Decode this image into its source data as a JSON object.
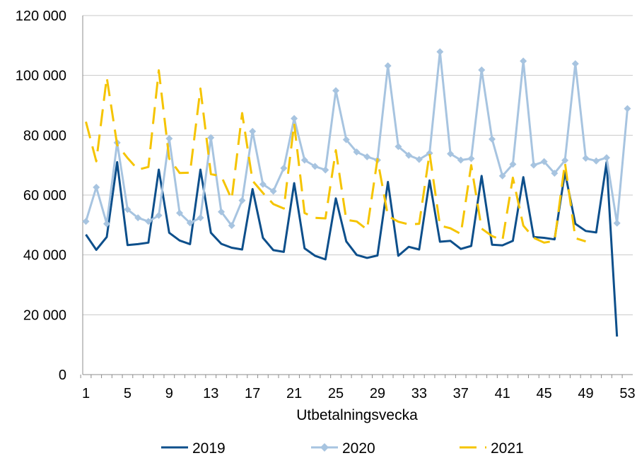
{
  "chart_data": {
    "type": "line",
    "title": "",
    "xlabel": "Utbetalningsvecka",
    "ylabel": "",
    "xlim": [
      1,
      53
    ],
    "ylim": [
      0,
      120000
    ],
    "x_ticks": [
      1,
      5,
      9,
      13,
      17,
      21,
      25,
      29,
      33,
      37,
      41,
      45,
      49,
      53
    ],
    "y_ticks": [
      0,
      20000,
      40000,
      60000,
      80000,
      100000,
      120000
    ],
    "y_tick_labels": [
      "0",
      "20 000",
      "40 000",
      "60 000",
      "80 000",
      "100 000",
      "120 000"
    ],
    "grid": "horizontal",
    "legend_position": "bottom",
    "series": [
      {
        "name": "2019",
        "color": "#0d4f8b",
        "style": "solid",
        "x": [
          1,
          2,
          3,
          4,
          5,
          6,
          7,
          8,
          9,
          10,
          11,
          12,
          13,
          14,
          15,
          16,
          17,
          18,
          19,
          20,
          21,
          22,
          23,
          24,
          25,
          26,
          27,
          28,
          29,
          30,
          31,
          32,
          33,
          34,
          35,
          36,
          37,
          38,
          39,
          40,
          41,
          42,
          43,
          44,
          45,
          46,
          47,
          48,
          49,
          50,
          51,
          52
        ],
        "values": [
          46800,
          41700,
          46000,
          71000,
          43300,
          43600,
          44100,
          68500,
          47400,
          44800,
          43600,
          68500,
          47400,
          43700,
          42400,
          41800,
          62000,
          45700,
          41600,
          41000,
          64000,
          42200,
          39700,
          38500,
          58900,
          44500,
          40000,
          39000,
          39800,
          64400,
          39700,
          42700,
          41800,
          64900,
          44400,
          44700,
          42000,
          43000,
          66400,
          43400,
          43200,
          44700,
          66000,
          46000,
          45700,
          45200,
          67600,
          50400,
          48000,
          47500,
          71000,
          12700
        ]
      },
      {
        "name": "2020",
        "color": "#a7c4e0",
        "style": "solid-markers",
        "x": [
          1,
          2,
          3,
          4,
          5,
          6,
          7,
          8,
          9,
          10,
          11,
          12,
          13,
          14,
          15,
          16,
          17,
          18,
          19,
          20,
          21,
          22,
          23,
          24,
          25,
          26,
          27,
          28,
          29,
          30,
          31,
          32,
          33,
          34,
          35,
          36,
          37,
          38,
          39,
          40,
          41,
          42,
          43,
          44,
          45,
          46,
          47,
          48,
          49,
          50,
          51,
          52,
          53
        ],
        "values": [
          51200,
          62600,
          50400,
          77500,
          55200,
          52400,
          51200,
          53200,
          78900,
          54000,
          50700,
          52400,
          79200,
          54400,
          49800,
          58200,
          81300,
          63600,
          61300,
          69000,
          85600,
          71700,
          69600,
          68400,
          94900,
          78500,
          74400,
          72800,
          71700,
          103200,
          76200,
          73300,
          71900,
          74000,
          107900,
          73800,
          71700,
          72200,
          101800,
          78700,
          66400,
          70300,
          104800,
          70000,
          71200,
          67300,
          71600,
          103900,
          72300,
          71400,
          72500,
          50600,
          88900
        ]
      },
      {
        "name": "2021",
        "color": "#f5c400",
        "style": "dashed",
        "x": [
          1,
          2,
          3,
          4,
          5,
          6,
          7,
          8,
          9,
          10,
          11,
          12,
          13,
          14,
          15,
          16,
          17,
          18,
          19,
          20,
          21,
          22,
          23,
          24,
          25,
          26,
          27,
          28,
          29,
          30,
          31,
          32,
          33,
          34,
          35,
          36,
          37,
          38,
          39,
          40,
          41,
          42,
          43,
          44,
          45,
          46,
          47,
          48,
          49
        ],
        "values": [
          84500,
          71300,
          99300,
          76800,
          72400,
          68500,
          69400,
          101700,
          72200,
          67400,
          67500,
          95600,
          67000,
          66300,
          58600,
          87400,
          64800,
          60700,
          57000,
          55500,
          83900,
          54000,
          52400,
          52200,
          75000,
          51700,
          51200,
          48500,
          72000,
          53000,
          51100,
          50200,
          50400,
          74000,
          49800,
          48900,
          47000,
          70000,
          48800,
          46300,
          44900,
          65800,
          49800,
          45700,
          44100,
          44700,
          70800,
          45600,
          44500
        ]
      }
    ]
  }
}
